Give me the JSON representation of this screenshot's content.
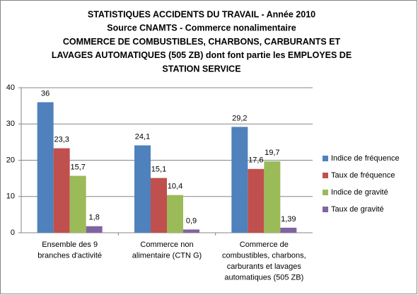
{
  "chart_data": {
    "type": "bar",
    "title": [
      "STATISTIQUES ACCIDENTS DU TRAVAIL - Année 2010",
      "Source CNAMTS - Commerce nonalimentaire",
      "COMMERCE DE COMBUSTIBLES, CHARBONS, CARBURANTS ET",
      "LAVAGES AUTOMATIQUES (505 ZB) dont font partie les EMPLOYES DE",
      "STATION SERVICE"
    ],
    "categories": [
      [
        "Ensemble des 9",
        "branches d'activité"
      ],
      [
        "Commerce non",
        "alimentaire (CTN G)"
      ],
      [
        "Commerce de",
        "combustibles, charbons,",
        "carburants et lavages",
        "automatiques (505 ZB)"
      ]
    ],
    "series": [
      {
        "name": "Indice de fréquence",
        "color": "#4f81bd",
        "values": [
          36,
          24.1,
          29.2
        ],
        "value_labels": [
          "36",
          "24,1",
          "29,2"
        ]
      },
      {
        "name": "Taux de fréquence",
        "color": "#c0504d",
        "values": [
          23.3,
          15.1,
          17.6
        ],
        "value_labels": [
          "23,3",
          "15,1",
          "17,6"
        ]
      },
      {
        "name": "Indice de gravité",
        "color": "#9bbb59",
        "values": [
          15.7,
          10.4,
          19.7
        ],
        "value_labels": [
          "15,7",
          "10,4",
          "19,7"
        ]
      },
      {
        "name": "Taux de gravité",
        "color": "#8064a2",
        "values": [
          1.8,
          0.9,
          1.39
        ],
        "value_labels": [
          "1,8",
          "0,9",
          "1,39"
        ]
      }
    ],
    "ylim": [
      0,
      40
    ],
    "yticks": [
      0,
      10,
      20,
      30,
      40
    ],
    "grid": true,
    "legend": "right"
  }
}
